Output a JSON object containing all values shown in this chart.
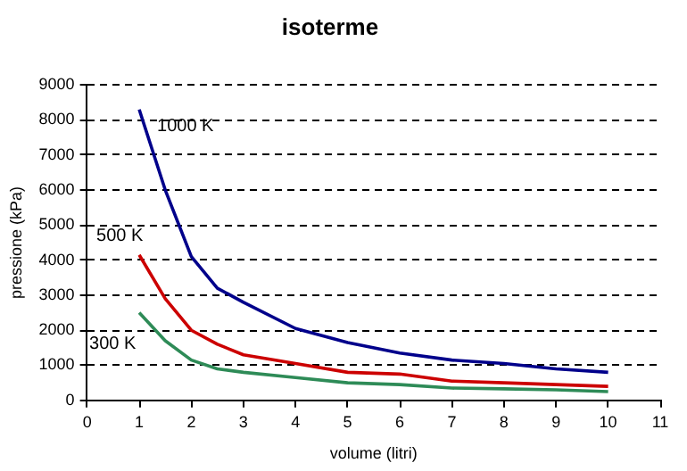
{
  "chart_data": {
    "type": "line",
    "title": "isoterme",
    "xlabel": "volume (litri)",
    "ylabel": "pressione (kPa)",
    "xlim": [
      0,
      11
    ],
    "xticks": [
      0,
      1,
      2,
      3,
      4,
      5,
      6,
      7,
      8,
      9,
      10,
      11
    ],
    "ylim": [
      0,
      9000
    ],
    "yticks": [
      0,
      1000,
      2000,
      3000,
      4000,
      5000,
      6000,
      7000,
      8000,
      9000
    ],
    "grid": "y",
    "legend": false,
    "marker": "none",
    "x": [
      1,
      1.5,
      2,
      2.5,
      3,
      4,
      5,
      6,
      7,
      8,
      9,
      10
    ],
    "series": [
      {
        "name": "1000 K",
        "color": "#00008b",
        "values": [
          8300,
          6000,
          4100,
          3200,
          2800,
          2050,
          1650,
          1350,
          1150,
          1050,
          900,
          800
        ]
      },
      {
        "name": "500 K",
        "color": "#cc0000",
        "values": [
          4150,
          2900,
          2000,
          1600,
          1300,
          1050,
          800,
          750,
          550,
          500,
          450,
          400
        ]
      },
      {
        "name": "300 K",
        "color": "#2e8b57",
        "values": [
          2500,
          1700,
          1150,
          900,
          800,
          650,
          500,
          450,
          350,
          330,
          300,
          250
        ]
      }
    ]
  }
}
